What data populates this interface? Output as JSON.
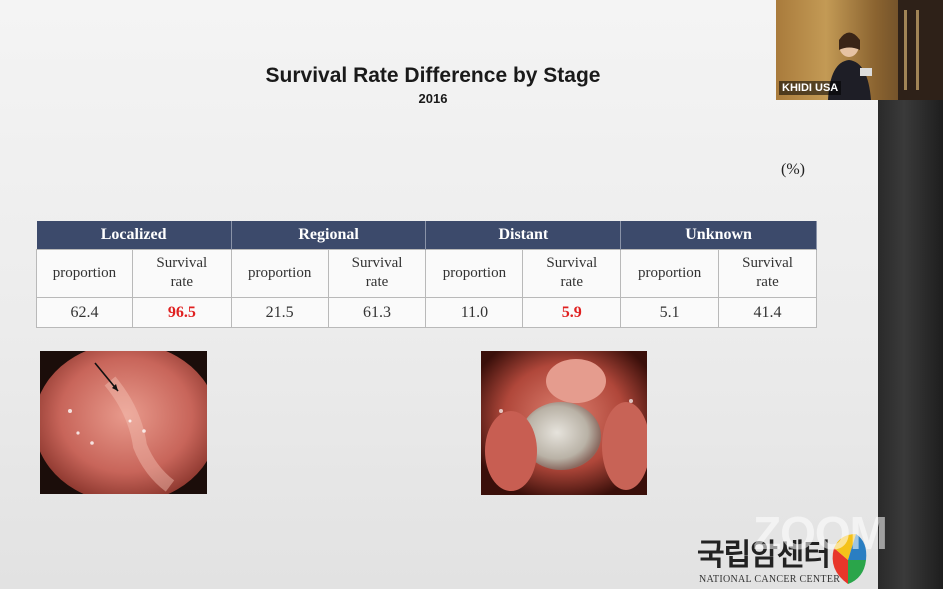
{
  "slide": {
    "title": "Survival Rate Difference by Stage",
    "subtitle": "2016",
    "unit": "(%)"
  },
  "table": {
    "stages": [
      "Localized",
      "Regional",
      "Distant",
      "Unknown"
    ],
    "sub_proportion": "proportion",
    "sub_survival_line1": "Survival",
    "sub_survival_line2": "rate",
    "values": [
      {
        "proportion": "62.4",
        "survival": "96.5"
      },
      {
        "proportion": "21.5",
        "survival": "61.3"
      },
      {
        "proportion": "11.0",
        "survival": "5.9"
      },
      {
        "proportion": "5.1",
        "survival": "41.4"
      }
    ],
    "highlight_color": "#e02020"
  },
  "webcam": {
    "label": "KHIDI USA"
  },
  "logo": {
    "korean": "국립암센터",
    "english": "NATIONAL CANCER CENTER"
  },
  "watermark": {
    "text": "ZOOM"
  },
  "colors": {
    "header_bg": "#3c4a6b",
    "slide_bg": "#eeeeee"
  }
}
